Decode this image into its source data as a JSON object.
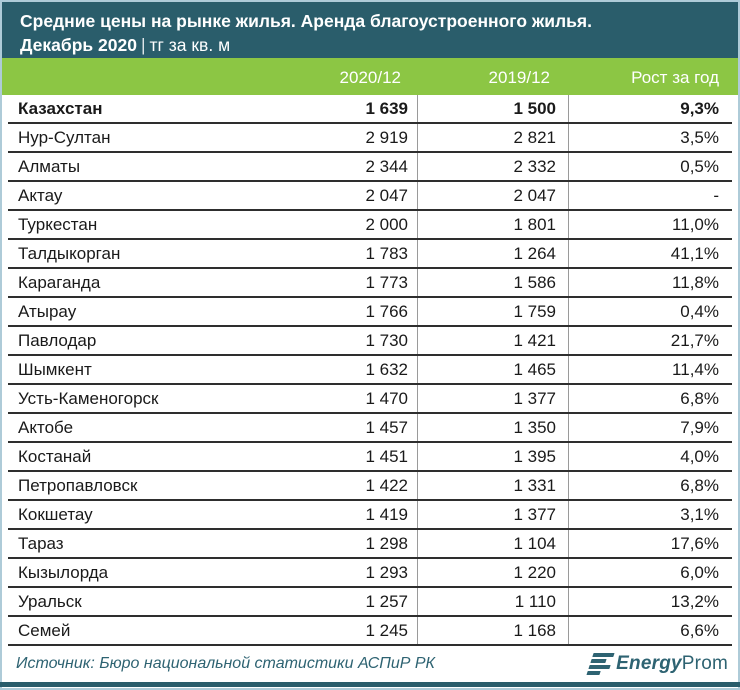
{
  "header": {
    "title_line1": "Средние цены на рынке жилья. Аренда благоустроенного жилья.",
    "subtitle_bold": "Декабрь 2020",
    "subtitle_separator": "|",
    "subtitle_unit": "тг за кв. м"
  },
  "chart_data": {
    "type": "table",
    "title": "Средние цены на рынке жилья. Аренда благоустроенного жилья. Декабрь 2020, тг за кв. м",
    "columns": [
      "2020/12",
      "2019/12",
      "Рост за год"
    ],
    "rows": [
      {
        "city": "Казахстан",
        "v2020": "1 639",
        "v2019": "1 500",
        "growth": "9,3%",
        "bold": true
      },
      {
        "city": "Нур-Султан",
        "v2020": "2 919",
        "v2019": "2 821",
        "growth": "3,5%"
      },
      {
        "city": "Алматы",
        "v2020": "2 344",
        "v2019": "2 332",
        "growth": "0,5%"
      },
      {
        "city": "Актау",
        "v2020": "2 047",
        "v2019": "2 047",
        "growth": "-"
      },
      {
        "city": "Туркестан",
        "v2020": "2 000",
        "v2019": "1 801",
        "growth": "11,0%"
      },
      {
        "city": "Талдыкорган",
        "v2020": "1 783",
        "v2019": "1 264",
        "growth": "41,1%"
      },
      {
        "city": "Караганда",
        "v2020": "1 773",
        "v2019": "1 586",
        "growth": "11,8%"
      },
      {
        "city": "Атырау",
        "v2020": "1 766",
        "v2019": "1 759",
        "growth": "0,4%"
      },
      {
        "city": "Павлодар",
        "v2020": "1 730",
        "v2019": "1 421",
        "growth": "21,7%"
      },
      {
        "city": "Шымкент",
        "v2020": "1 632",
        "v2019": "1 465",
        "growth": "11,4%"
      },
      {
        "city": "Усть-Каменогорск",
        "v2020": "1 470",
        "v2019": "1 377",
        "growth": "6,8%"
      },
      {
        "city": "Актобе",
        "v2020": "1 457",
        "v2019": "1 350",
        "growth": "7,9%"
      },
      {
        "city": "Костанай",
        "v2020": "1 451",
        "v2019": "1 395",
        "growth": "4,0%"
      },
      {
        "city": "Петропавловск",
        "v2020": "1 422",
        "v2019": "1 331",
        "growth": "6,8%"
      },
      {
        "city": "Кокшетау",
        "v2020": "1 419",
        "v2019": "1 377",
        "growth": "3,1%"
      },
      {
        "city": "Тараз",
        "v2020": "1 298",
        "v2019": "1 104",
        "growth": "17,6%"
      },
      {
        "city": "Кызылорда",
        "v2020": "1 293",
        "v2019": "1 220",
        "growth": "6,0%"
      },
      {
        "city": "Уральск",
        "v2020": "1 257",
        "v2019": "1 110",
        "growth": "13,2%"
      },
      {
        "city": "Семей",
        "v2020": "1 245",
        "v2019": "1 168",
        "growth": "6,6%"
      }
    ]
  },
  "footer": {
    "source": "Источник: Бюро национальной статистики АСПиР РК",
    "logo_bold": "Energy",
    "logo_regular": "Prom"
  },
  "colors": {
    "header_bg": "#2A5D6B",
    "accent_green": "#8CC644",
    "teal_text": "#2E6372",
    "row_border": "#2e2e2e"
  }
}
